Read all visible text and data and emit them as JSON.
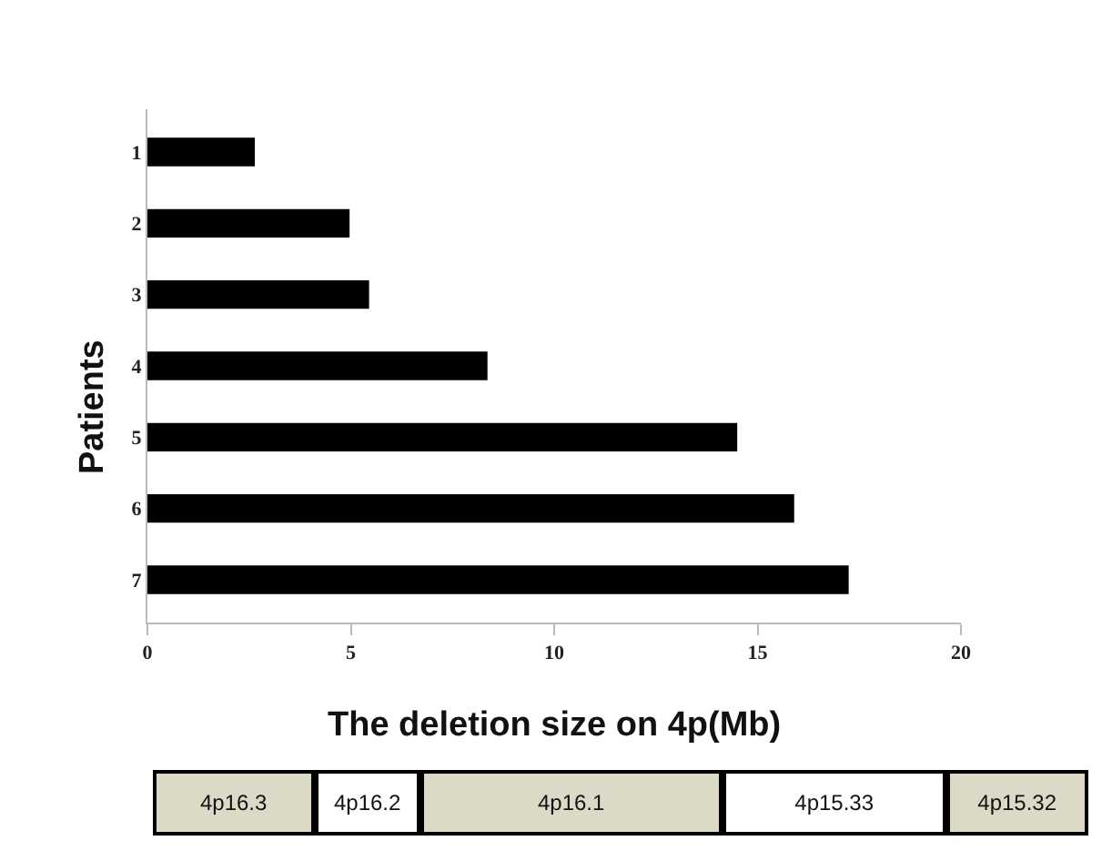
{
  "chart_data": {
    "type": "bar",
    "orientation": "horizontal",
    "categories": [
      "1",
      "2",
      "3",
      "4",
      "5",
      "6",
      "7"
    ],
    "values": [
      2.64,
      4.97,
      5.45,
      8.36,
      14.5,
      15.9,
      17.24
    ],
    "color": "#000000",
    "xlabel": "The deletion size on 4p(Mb)",
    "ylabel": "Patients",
    "xlim": [
      0,
      20
    ],
    "xticks": [
      0,
      5,
      10,
      15,
      20
    ],
    "annotations": [
      "4p16.3",
      "4p16.2",
      "4p16.1",
      "4p15.33",
      "4p15.32"
    ],
    "legend": false
  }
}
